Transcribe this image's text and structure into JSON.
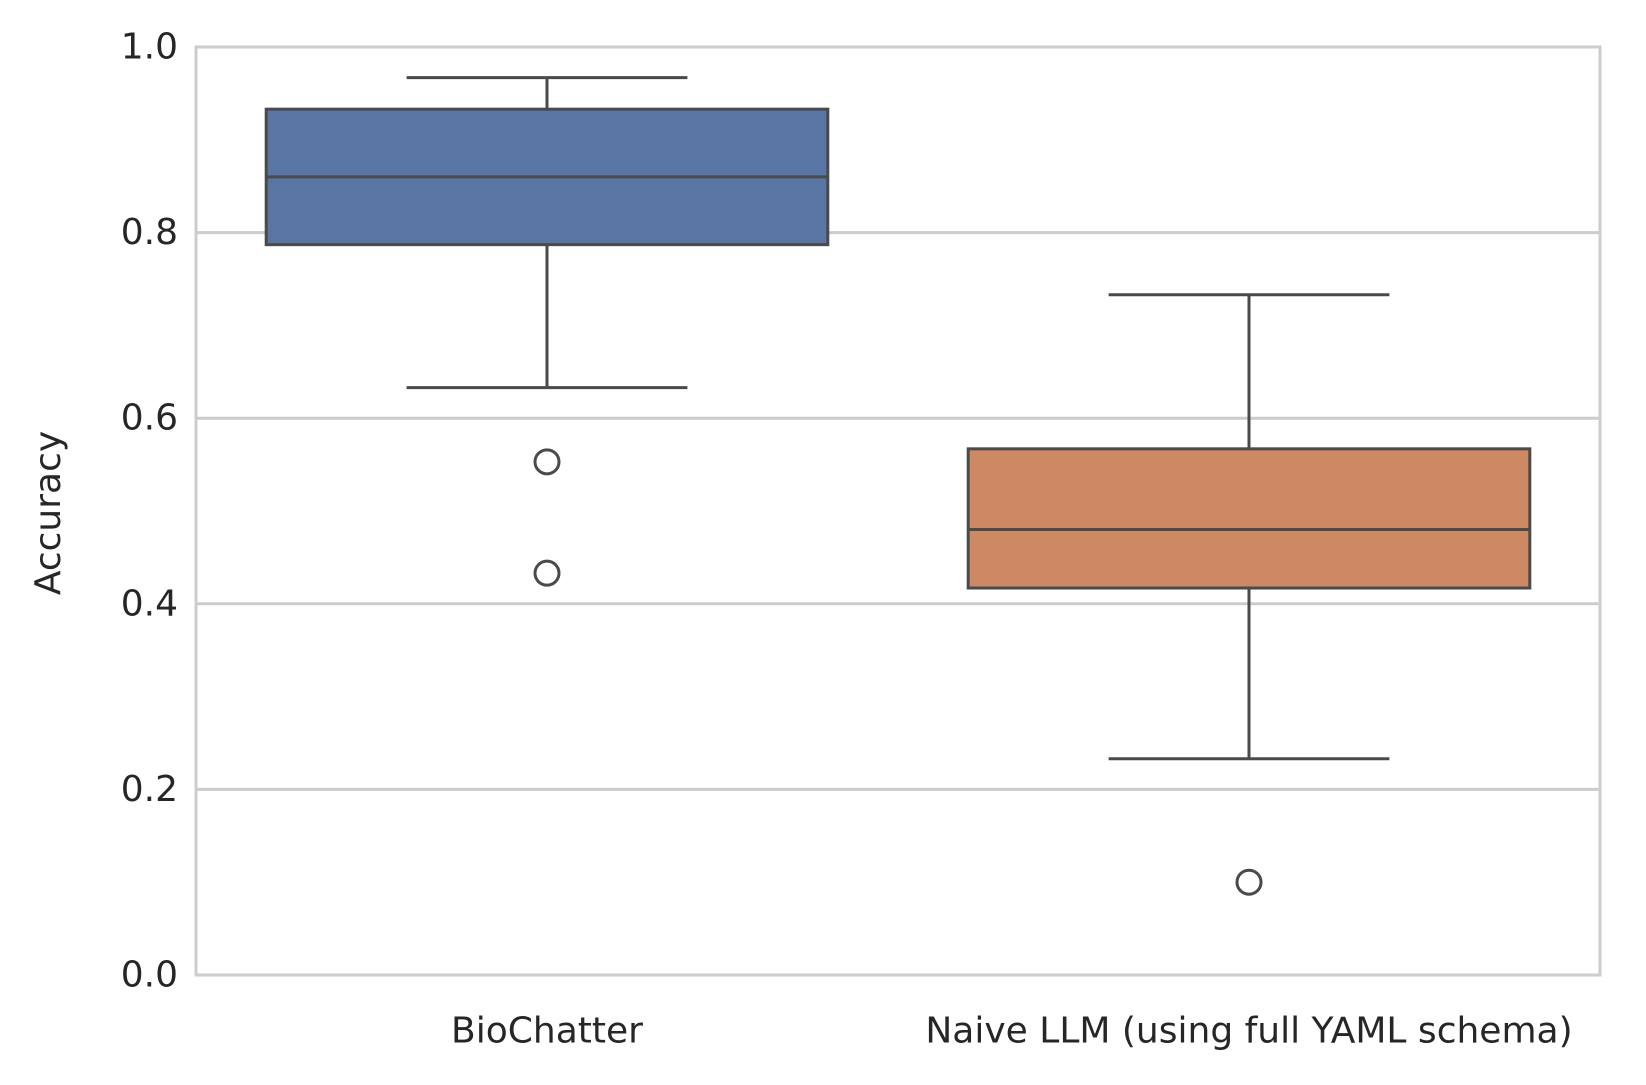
{
  "chart_data": {
    "type": "box",
    "title": "",
    "xlabel": "",
    "ylabel": "Accuracy",
    "ylim": [
      0.0,
      1.0
    ],
    "yticks": [
      "0.0",
      "0.2",
      "0.4",
      "0.6",
      "0.8",
      "1.0"
    ],
    "grid": "horizontal",
    "categories": [
      "BioChatter",
      "Naive LLM (using full YAML schema)"
    ],
    "boxes": [
      {
        "category": "BioChatter",
        "color": "#5975a4",
        "whisker_low": 0.633,
        "q1": 0.787,
        "median": 0.86,
        "q3": 0.933,
        "whisker_high": 0.967,
        "outliers": [
          0.553,
          0.433
        ]
      },
      {
        "category": "Naive LLM (using full YAML schema)",
        "color": "#cc8963",
        "whisker_low": 0.233,
        "q1": 0.417,
        "median": 0.48,
        "q3": 0.567,
        "whisker_high": 0.733,
        "outliers": [
          0.1
        ]
      }
    ]
  }
}
